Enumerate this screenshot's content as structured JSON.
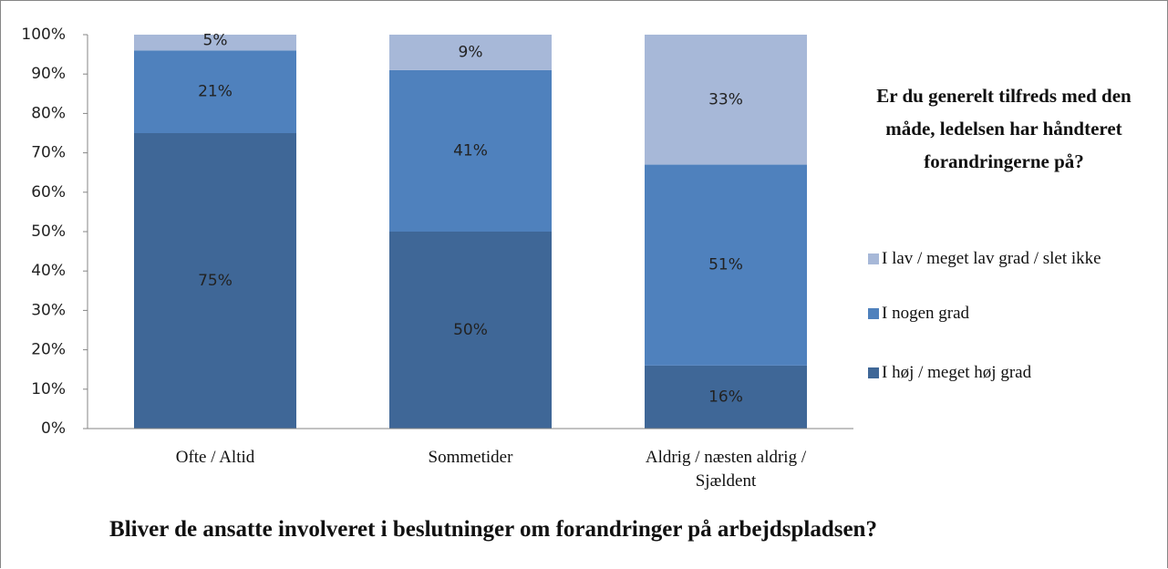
{
  "chart_data": {
    "type": "stacked_bar",
    "categories": [
      "Ofte / Altid",
      "Sommetider",
      "Aldrig / næsten aldrig / Sjældent"
    ],
    "series": [
      {
        "name": "I høj / meget høj grad",
        "color": "#3f6797",
        "values": [
          75,
          50,
          16
        ],
        "value_labels": [
          "75%",
          "50%",
          "16%"
        ]
      },
      {
        "name": "I nogen grad",
        "color": "#4f81bd",
        "values": [
          21,
          41,
          51
        ],
        "value_labels": [
          "21%",
          "41%",
          "51%"
        ]
      },
      {
        "name": "I lav / meget lav grad / slet ikke",
        "color": "#a7b8d8",
        "values": [
          5,
          9,
          33
        ],
        "value_labels": [
          "5%",
          "9%",
          "33%"
        ]
      }
    ],
    "ylim": [
      0,
      100
    ],
    "yticks": [
      {
        "value": 0,
        "label": "0%"
      },
      {
        "value": 10,
        "label": "10%"
      },
      {
        "value": 20,
        "label": "20%"
      },
      {
        "value": 30,
        "label": "30%"
      },
      {
        "value": 40,
        "label": "40%"
      },
      {
        "value": 50,
        "label": "50%"
      },
      {
        "value": 60,
        "label": "60%"
      },
      {
        "value": 70,
        "label": "70%"
      },
      {
        "value": 80,
        "label": "80%"
      },
      {
        "value": 90,
        "label": "90%"
      },
      {
        "value": 100,
        "label": "100%"
      }
    ],
    "xlabel": "Bliver de ansatte involveret i beslutninger om forandringer på arbejdspladsen?",
    "legend_title": "Er du generelt tilfreds med den måde, ledelsen har håndteret forandringerne på?",
    "legend_position": "right"
  }
}
